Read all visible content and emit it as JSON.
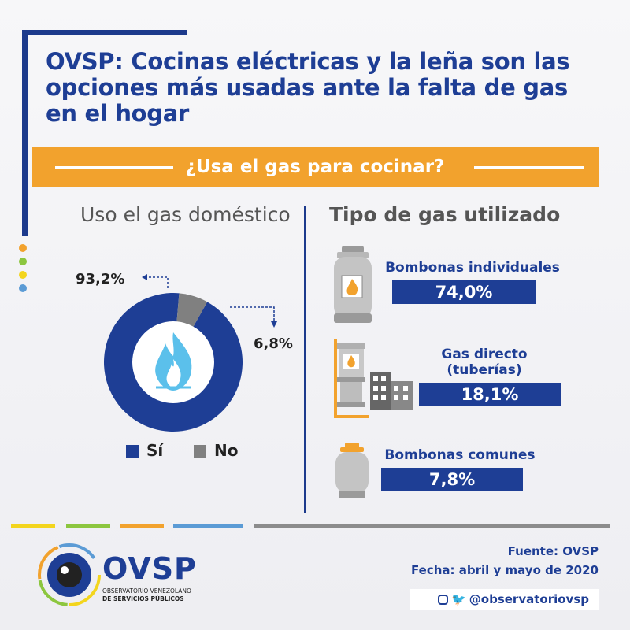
{
  "title": "OVSP: Cocinas eléctricas y la leña son las opciones más usadas ante la falta de gas en el hogar",
  "banner": "¿Usa el gas para cocinar?",
  "colors": {
    "navy": "#1e3e95",
    "orange": "#f2a22d",
    "gray": "#808080",
    "yellow": "#f3d51d",
    "green": "#8cc63f",
    "lightblue": "#5b9bd5",
    "flame": "#5bc0eb"
  },
  "left_title": "Uso el gas doméstico",
  "right_title": "Tipo de gas utilizado",
  "chart_data": [
    {
      "type": "pie",
      "title": "Uso el gas doméstico",
      "categories": [
        "Sí",
        "No"
      ],
      "values": [
        93.2,
        6.8
      ],
      "value_labels": [
        "93,2%",
        "6,8%"
      ],
      "colors": [
        "#1e3e95",
        "#808080"
      ],
      "legend": "bottom"
    },
    {
      "type": "bar",
      "title": "Tipo de gas utilizado",
      "categories": [
        "Bombonas individuales",
        "Gas directo (tuberías)",
        "Bombonas comunes"
      ],
      "values": [
        74.0,
        18.1,
        7.8
      ],
      "value_labels": [
        "74,0%",
        "18,1%",
        "7,8%"
      ],
      "label_lines": [
        [
          "Bombonas individuales"
        ],
        [
          "Gas directo",
          "(tuberías)"
        ],
        [
          "Bombonas comunes"
        ]
      ]
    }
  ],
  "icons": [
    "flame-icon",
    "gas-cylinder-icon",
    "gas-tank-icon",
    "buildings-icon",
    "instagram-icon",
    "twitter-icon"
  ],
  "footer": {
    "source": "Fuente: OVSP",
    "date": "Fecha: abril y mayo de 2020",
    "social": "@observatoriovsp",
    "logo": "OVSP",
    "logo_sub_1": "OBSERVATORIO VENEZOLANO",
    "logo_sub_2": "DE SERVICIOS PÚBLICOS"
  }
}
